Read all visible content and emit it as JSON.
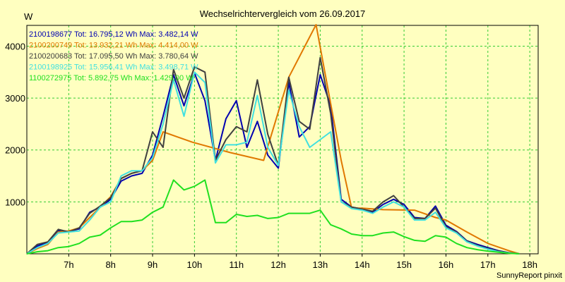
{
  "chart_data": {
    "type": "line",
    "title": "Wechselrichtervergleich vom 26.09.2017",
    "ylabel": "W",
    "footer": "SunnyReport pinxit",
    "xlim": [
      6.0,
      18.2
    ],
    "ylim": [
      0,
      4400
    ],
    "x_ticks": [
      7,
      8,
      9,
      10,
      11,
      12,
      13,
      14,
      15,
      16,
      17,
      18
    ],
    "x_tick_labels": [
      "7h",
      "8h",
      "9h",
      "10h",
      "11h",
      "12h",
      "13h",
      "14h",
      "15h",
      "16h",
      "17h",
      "18h"
    ],
    "y_ticks": [
      1000,
      2000,
      3000,
      4000
    ],
    "y_tick_labels": [
      "1000",
      "2000",
      "3000",
      "4000"
    ],
    "grid": true,
    "legend_position": "top-left",
    "series": [
      {
        "name": "2100198677",
        "legend": "2100198677 Tot: 16.795,12 Wh Max: 3.482,14 W",
        "color": "#0000b0",
        "points": [
          [
            6.0,
            0
          ],
          [
            6.25,
            150
          ],
          [
            6.5,
            220
          ],
          [
            6.75,
            450
          ],
          [
            7.0,
            430
          ],
          [
            7.25,
            480
          ],
          [
            7.5,
            800
          ],
          [
            7.75,
            900
          ],
          [
            8.0,
            1050
          ],
          [
            8.25,
            1400
          ],
          [
            8.5,
            1500
          ],
          [
            8.75,
            1550
          ],
          [
            9.0,
            1900
          ],
          [
            9.25,
            2650
          ],
          [
            9.5,
            3450
          ],
          [
            9.75,
            2850
          ],
          [
            10.0,
            3480
          ],
          [
            10.25,
            2950
          ],
          [
            10.5,
            1800
          ],
          [
            10.75,
            2600
          ],
          [
            11.0,
            2950
          ],
          [
            11.25,
            2050
          ],
          [
            11.5,
            2550
          ],
          [
            11.75,
            1900
          ],
          [
            12.0,
            1650
          ],
          [
            12.25,
            3300
          ],
          [
            12.5,
            2250
          ],
          [
            12.75,
            2450
          ],
          [
            13.0,
            3450
          ],
          [
            13.25,
            2850
          ],
          [
            13.5,
            1050
          ],
          [
            13.75,
            900
          ],
          [
            14.0,
            860
          ],
          [
            14.25,
            800
          ],
          [
            14.5,
            950
          ],
          [
            14.75,
            1050
          ],
          [
            15.0,
            950
          ],
          [
            15.25,
            700
          ],
          [
            15.5,
            680
          ],
          [
            15.75,
            920
          ],
          [
            16.0,
            550
          ],
          [
            16.25,
            430
          ],
          [
            16.5,
            250
          ],
          [
            16.75,
            180
          ],
          [
            17.0,
            120
          ],
          [
            17.25,
            60
          ],
          [
            17.5,
            20
          ],
          [
            17.75,
            0
          ]
        ]
      },
      {
        "name": "2100200749",
        "legend": "2100200749 Tot: 13.932,21 Wh Max: 4.414,00 W",
        "color": "#e07800",
        "points": [
          [
            6.0,
            0
          ],
          [
            6.25,
            100
          ],
          [
            6.5,
            180
          ],
          [
            6.75,
            420
          ],
          [
            7.0,
            440
          ],
          [
            7.25,
            500
          ],
          [
            7.5,
            700
          ],
          [
            7.75,
            900
          ],
          [
            8.0,
            1100
          ],
          [
            8.25,
            1450
          ],
          [
            8.5,
            1550
          ],
          [
            8.75,
            1600
          ],
          [
            9.0,
            1800
          ],
          [
            9.25,
            2350
          ],
          [
            9.95,
            2150
          ],
          [
            10.85,
            1950
          ],
          [
            11.65,
            1800
          ],
          [
            12.25,
            3400
          ],
          [
            12.9,
            4414
          ],
          [
            13.5,
            1800
          ],
          [
            13.75,
            880
          ],
          [
            14.0,
            880
          ],
          [
            14.5,
            850
          ],
          [
            15.25,
            840
          ],
          [
            15.75,
            700
          ],
          [
            16.0,
            650
          ],
          [
            16.5,
            420
          ],
          [
            17.0,
            200
          ],
          [
            17.5,
            60
          ],
          [
            17.75,
            0
          ]
        ]
      },
      {
        "name": "2100200683",
        "legend": "2100200683 Tot: 17.095,50 Wh Max: 3.780,64 W",
        "color": "#404040",
        "points": [
          [
            6.0,
            0
          ],
          [
            6.25,
            180
          ],
          [
            6.5,
            230
          ],
          [
            6.75,
            470
          ],
          [
            7.0,
            420
          ],
          [
            7.25,
            500
          ],
          [
            7.5,
            780
          ],
          [
            7.75,
            920
          ],
          [
            8.0,
            1080
          ],
          [
            8.25,
            1450
          ],
          [
            8.5,
            1550
          ],
          [
            8.75,
            1600
          ],
          [
            9.0,
            2350
          ],
          [
            9.25,
            2050
          ],
          [
            9.5,
            3550
          ],
          [
            9.75,
            3000
          ],
          [
            10.0,
            3600
          ],
          [
            10.25,
            3500
          ],
          [
            10.5,
            1800
          ],
          [
            10.75,
            2200
          ],
          [
            11.0,
            2450
          ],
          [
            11.25,
            2350
          ],
          [
            11.5,
            3350
          ],
          [
            11.75,
            2300
          ],
          [
            12.0,
            1700
          ],
          [
            12.25,
            3400
          ],
          [
            12.5,
            2550
          ],
          [
            12.75,
            2400
          ],
          [
            13.0,
            3780
          ],
          [
            13.25,
            2700
          ],
          [
            13.5,
            1000
          ],
          [
            13.75,
            900
          ],
          [
            14.0,
            860
          ],
          [
            14.25,
            820
          ],
          [
            14.5,
            1000
          ],
          [
            14.75,
            1120
          ],
          [
            15.0,
            900
          ],
          [
            15.25,
            680
          ],
          [
            15.5,
            680
          ],
          [
            15.75,
            880
          ],
          [
            16.0,
            520
          ],
          [
            16.25,
            420
          ],
          [
            16.5,
            240
          ],
          [
            16.75,
            160
          ],
          [
            17.0,
            100
          ],
          [
            17.25,
            50
          ],
          [
            17.5,
            20
          ],
          [
            17.75,
            0
          ]
        ]
      },
      {
        "name": "2100198925",
        "legend": "2100198925 Tot: 15.956,41 Wh Max: 3.498,71 W",
        "color": "#40e0e0",
        "points": [
          [
            6.0,
            0
          ],
          [
            6.25,
            120
          ],
          [
            6.5,
            200
          ],
          [
            6.75,
            400
          ],
          [
            7.0,
            420
          ],
          [
            7.25,
            440
          ],
          [
            7.5,
            650
          ],
          [
            7.75,
            900
          ],
          [
            8.0,
            1000
          ],
          [
            8.25,
            1500
          ],
          [
            8.5,
            1600
          ],
          [
            8.75,
            1600
          ],
          [
            9.0,
            1850
          ],
          [
            9.25,
            2500
          ],
          [
            9.5,
            3350
          ],
          [
            9.75,
            2650
          ],
          [
            10.0,
            3500
          ],
          [
            10.25,
            3300
          ],
          [
            10.5,
            1750
          ],
          [
            10.75,
            2100
          ],
          [
            11.0,
            2100
          ],
          [
            11.25,
            2150
          ],
          [
            11.5,
            3050
          ],
          [
            11.75,
            2050
          ],
          [
            12.0,
            1700
          ],
          [
            12.25,
            3150
          ],
          [
            12.5,
            2450
          ],
          [
            12.75,
            2050
          ],
          [
            13.0,
            2200
          ],
          [
            13.25,
            2350
          ],
          [
            13.5,
            1000
          ],
          [
            13.75,
            870
          ],
          [
            14.0,
            840
          ],
          [
            14.25,
            780
          ],
          [
            14.5,
            900
          ],
          [
            14.75,
            1000
          ],
          [
            15.0,
            900
          ],
          [
            15.25,
            650
          ],
          [
            15.5,
            650
          ],
          [
            15.75,
            800
          ],
          [
            16.0,
            500
          ],
          [
            16.25,
            400
          ],
          [
            16.5,
            230
          ],
          [
            16.75,
            150
          ],
          [
            17.0,
            90
          ],
          [
            17.25,
            40
          ],
          [
            17.5,
            15
          ],
          [
            17.75,
            0
          ]
        ]
      },
      {
        "name": "1100272975",
        "legend": "1100272975 Tot: 5.892,75 Wh Max: 1.429,00 W",
        "color": "#20e020",
        "points": [
          [
            6.0,
            0
          ],
          [
            6.25,
            40
          ],
          [
            6.5,
            60
          ],
          [
            6.75,
            120
          ],
          [
            7.0,
            140
          ],
          [
            7.25,
            200
          ],
          [
            7.5,
            320
          ],
          [
            7.75,
            360
          ],
          [
            8.0,
            500
          ],
          [
            8.25,
            620
          ],
          [
            8.5,
            620
          ],
          [
            8.75,
            650
          ],
          [
            9.0,
            800
          ],
          [
            9.25,
            900
          ],
          [
            9.5,
            1420
          ],
          [
            9.75,
            1230
          ],
          [
            10.0,
            1300
          ],
          [
            10.25,
            1420
          ],
          [
            10.5,
            600
          ],
          [
            10.75,
            600
          ],
          [
            11.0,
            760
          ],
          [
            11.25,
            720
          ],
          [
            11.5,
            740
          ],
          [
            11.75,
            680
          ],
          [
            12.0,
            700
          ],
          [
            12.25,
            780
          ],
          [
            12.5,
            780
          ],
          [
            12.75,
            780
          ],
          [
            13.0,
            840
          ],
          [
            13.25,
            560
          ],
          [
            13.5,
            480
          ],
          [
            13.75,
            380
          ],
          [
            14.0,
            350
          ],
          [
            14.25,
            350
          ],
          [
            14.5,
            400
          ],
          [
            14.75,
            420
          ],
          [
            15.0,
            330
          ],
          [
            15.25,
            260
          ],
          [
            15.5,
            240
          ],
          [
            15.75,
            350
          ],
          [
            16.0,
            320
          ],
          [
            16.25,
            200
          ],
          [
            16.5,
            120
          ],
          [
            16.75,
            80
          ],
          [
            17.0,
            50
          ],
          [
            17.25,
            30
          ],
          [
            17.5,
            10
          ],
          [
            17.75,
            0
          ]
        ]
      }
    ]
  }
}
